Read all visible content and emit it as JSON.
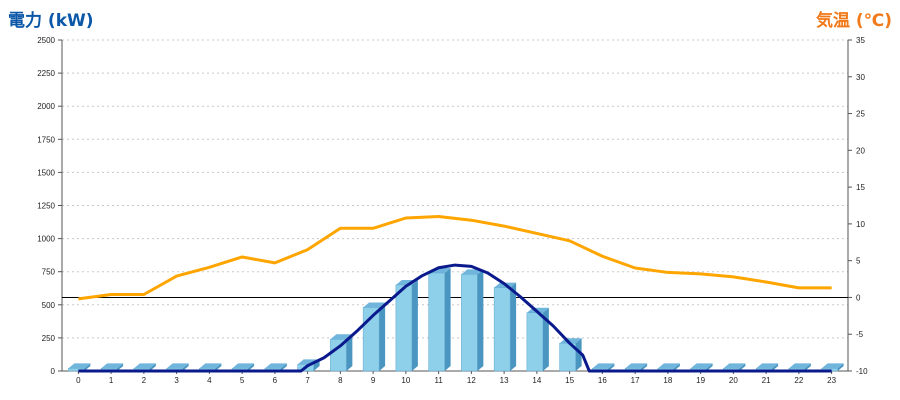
{
  "left_title": "電力 (kW)",
  "right_title": "気温 (℃)",
  "chart_data": {
    "type": "bar",
    "categories": [
      "0",
      "1",
      "2",
      "3",
      "4",
      "5",
      "6",
      "7",
      "8",
      "9",
      "10",
      "11",
      "12",
      "13",
      "14",
      "15",
      "16",
      "17",
      "18",
      "19",
      "20",
      "21",
      "22",
      "23"
    ],
    "left_axis": {
      "label": "電力 (kW)",
      "ylim": [
        0,
        2500
      ],
      "ticks": [
        0,
        250,
        500,
        750,
        1000,
        1250,
        1500,
        1750,
        2000,
        2250,
        2500
      ]
    },
    "right_axis": {
      "label": "気温 (℃)",
      "ylim": [
        -10,
        35
      ],
      "ticks": [
        -10,
        -5,
        0,
        5,
        10,
        15,
        20,
        25,
        30,
        35
      ]
    },
    "grid": true,
    "series": [
      {
        "kind": "bar",
        "axis": "left",
        "color": "#8ecfe9",
        "values": [
          20,
          20,
          20,
          20,
          20,
          20,
          20,
          50,
          240,
          480,
          650,
          740,
          730,
          630,
          440,
          210,
          20,
          20,
          20,
          20,
          20,
          20,
          20,
          20
        ]
      },
      {
        "kind": "line",
        "axis": "left",
        "color": "#0a1a8c",
        "points": [
          [
            0,
            0
          ],
          [
            1,
            0
          ],
          [
            2,
            0
          ],
          [
            3,
            0
          ],
          [
            4,
            0
          ],
          [
            5,
            0
          ],
          [
            6,
            0
          ],
          [
            6.8,
            0
          ],
          [
            7,
            40
          ],
          [
            7.5,
            100
          ],
          [
            8,
            190
          ],
          [
            8.5,
            300
          ],
          [
            9,
            420
          ],
          [
            9.5,
            530
          ],
          [
            10,
            640
          ],
          [
            10.5,
            720
          ],
          [
            11,
            780
          ],
          [
            11.5,
            800
          ],
          [
            12,
            790
          ],
          [
            12.5,
            740
          ],
          [
            13,
            660
          ],
          [
            13.5,
            560
          ],
          [
            14,
            450
          ],
          [
            14.5,
            340
          ],
          [
            15,
            210
          ],
          [
            15.4,
            120
          ],
          [
            15.6,
            0
          ],
          [
            16,
            0
          ],
          [
            17,
            0
          ],
          [
            18,
            0
          ],
          [
            19,
            0
          ],
          [
            20,
            0
          ],
          [
            21,
            0
          ],
          [
            22,
            0
          ],
          [
            23,
            0
          ]
        ]
      },
      {
        "kind": "line",
        "axis": "right",
        "color": "#ffa500",
        "values": [
          -0.2,
          0.4,
          0.4,
          2.9,
          4.1,
          5.5,
          4.7,
          6.5,
          9.4,
          9.4,
          10.8,
          11,
          10.5,
          9.7,
          8.7,
          7.7,
          5.6,
          4,
          3.4,
          3.2,
          2.8,
          2.1,
          1.3,
          1.3
        ]
      }
    ]
  }
}
